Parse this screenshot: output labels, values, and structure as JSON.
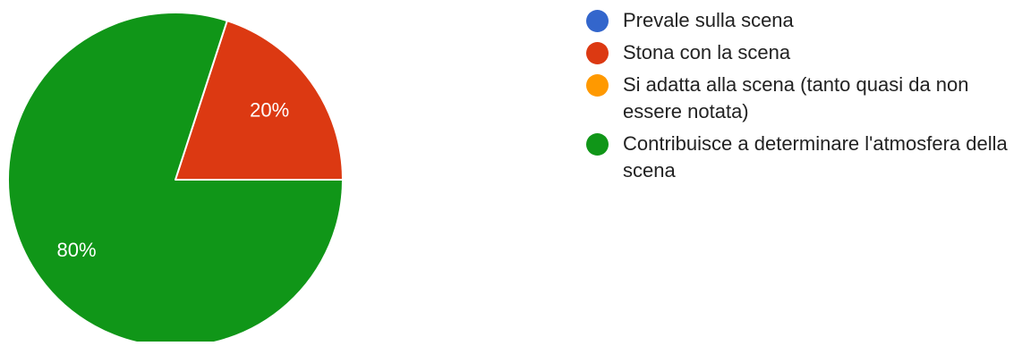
{
  "chart_data": {
    "type": "pie",
    "title": "",
    "slices": [
      {
        "label": "Prevale sulla scena",
        "value": 0,
        "color": "#3366cc",
        "display": "0%"
      },
      {
        "label": "Stona con la scena",
        "value": 20,
        "color": "#dc3912",
        "display": "20%"
      },
      {
        "label": "Si adatta alla scena (tanto quasi da non essere notata)",
        "value": 0,
        "color": "#ff9900",
        "display": "0%"
      },
      {
        "label": "Contribuisce a determinare l'atmosfera della scena",
        "value": 80,
        "color": "#109618",
        "display": "80%"
      }
    ],
    "legend_position": "right"
  }
}
